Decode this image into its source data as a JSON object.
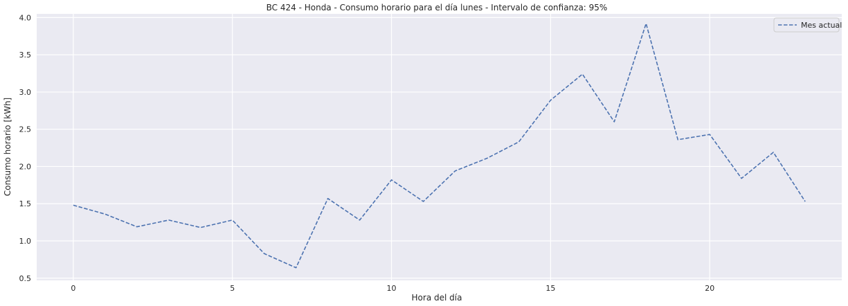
{
  "chart_data": {
    "type": "line",
    "title": "BC 424 - Honda - Consumo horario para el día lunes - Intervalo de confianza: 95%",
    "xlabel": "Hora del día",
    "ylabel": "Consumo horario [kWh]",
    "x": [
      0,
      1,
      2,
      3,
      4,
      5,
      6,
      7,
      8,
      9,
      10,
      11,
      12,
      13,
      14,
      15,
      16,
      17,
      18,
      19,
      20,
      21,
      22,
      23
    ],
    "xlim": [
      -1.15,
      24.15
    ],
    "ylim": [
      0.47,
      4.05
    ],
    "xticks": [
      0,
      5,
      10,
      15,
      20
    ],
    "yticks": [
      0.5,
      1.0,
      1.5,
      2.0,
      2.5,
      3.0,
      3.5,
      4.0
    ],
    "xtick_labels": [
      "0",
      "5",
      "10",
      "15",
      "20"
    ],
    "ytick_labels": [
      "0.5",
      "1.0",
      "1.5",
      "2.0",
      "2.5",
      "3.0",
      "3.5",
      "4.0"
    ],
    "grid": true,
    "legend_position": "top-right",
    "series": [
      {
        "name": "Mes actual",
        "style": "dashed",
        "color": "#4c72b0",
        "values": [
          1.48,
          1.36,
          1.19,
          1.28,
          1.18,
          1.28,
          0.83,
          0.64,
          1.57,
          1.28,
          1.82,
          1.53,
          1.94,
          2.11,
          2.33,
          2.89,
          3.24,
          2.6,
          3.92,
          2.36,
          2.43,
          1.84,
          2.19,
          1.53
        ]
      }
    ]
  }
}
